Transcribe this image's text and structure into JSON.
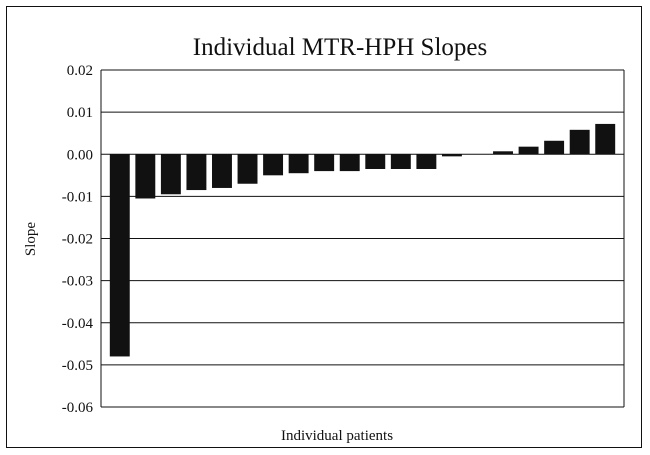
{
  "chart_data": {
    "type": "bar",
    "title": "Individual MTR-HPH Slopes",
    "xlabel": "Individual patients",
    "ylabel": "Slope",
    "ylim": [
      -0.06,
      0.02
    ],
    "yticks": [
      "0.02",
      "0.01",
      "0.00",
      "-0.01",
      "-0.02",
      "-0.03",
      "-0.04",
      "-0.05",
      "-0.06"
    ],
    "ytick_values": [
      0.02,
      0.01,
      0.0,
      -0.01,
      -0.02,
      -0.03,
      -0.04,
      -0.05,
      -0.06
    ],
    "values": [
      -0.048,
      -0.0105,
      -0.0095,
      -0.0085,
      -0.008,
      -0.007,
      -0.005,
      -0.0045,
      -0.004,
      -0.004,
      -0.0035,
      -0.0035,
      -0.0035,
      -0.0005,
      0.0,
      0.0007,
      0.0018,
      0.0032,
      0.0058,
      0.0072
    ],
    "grid": true,
    "legend": "none",
    "bar_color": "#111111"
  }
}
